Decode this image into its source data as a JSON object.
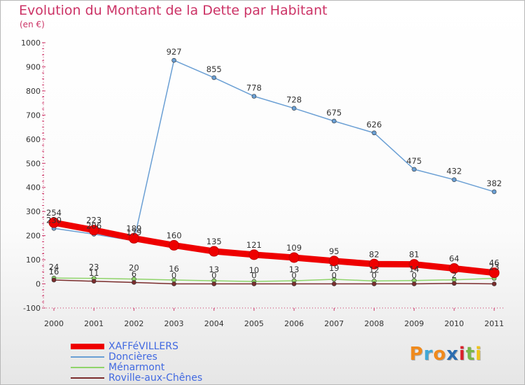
{
  "title": "Evolution du Montant de la Dette par Habitant",
  "subtitle": "(en €)",
  "brand": {
    "text": "Proxiti",
    "letter_colors": [
      "#f08a1c",
      "#3fa7d6",
      "#f08a1c",
      "#2b6cb0",
      "#d9232e",
      "#7ab648",
      "#f0c419"
    ]
  },
  "chart_data": {
    "type": "line",
    "x": [
      "2000",
      "2001",
      "2002",
      "2003",
      "2004",
      "2005",
      "2006",
      "2007",
      "2008",
      "2009",
      "2010",
      "2011"
    ],
    "ylim": [
      -100,
      1000
    ],
    "yticks": [
      "-100",
      "0",
      "100",
      "200",
      "300",
      "400",
      "500",
      "600",
      "700",
      "800",
      "900",
      "1000"
    ],
    "grid": false,
    "legend_position": "bottom-left",
    "series": [
      {
        "name": "Doncières",
        "color": "#6a9fd4",
        "values": [
          230,
          206,
          179,
          927,
          855,
          778,
          728,
          675,
          626,
          475,
          432,
          382
        ],
        "labels": [
          "230",
          "206",
          "179",
          "927",
          "855",
          "778",
          "728",
          "675",
          "626",
          "475",
          "432",
          "382"
        ]
      },
      {
        "name": "Ménarmont",
        "color": "#8fd46a",
        "values": [
          24,
          23,
          20,
          16,
          13,
          10,
          13,
          19,
          12,
          14,
          17,
          23
        ],
        "labels": [
          "24",
          "23",
          "20",
          "16",
          "13",
          "10",
          "13",
          "19",
          "12",
          "14",
          "",
          "23"
        ]
      },
      {
        "name": "Roville-aux-Chênes",
        "color": "#7b2d2d",
        "values": [
          16,
          11,
          6,
          0,
          0,
          0,
          0,
          0,
          0,
          0,
          2,
          0
        ],
        "labels": [
          "16",
          "11",
          "6",
          "0",
          "0",
          "0",
          "0",
          "0",
          "0",
          "0",
          "2",
          ""
        ]
      },
      {
        "name": "XAFFéVILLERS",
        "color": "#ee0000",
        "values": [
          254,
          223,
          189,
          160,
          135,
          121,
          109,
          95,
          82,
          81,
          64,
          46
        ],
        "labels": [
          "254",
          "223",
          "189",
          "160",
          "135",
          "121",
          "109",
          "95",
          "82",
          "81",
          "64",
          "46"
        ]
      }
    ],
    "legend_order": [
      "XAFFéVILLERS",
      "Doncières",
      "Ménarmont",
      "Roville-aux-Chênes"
    ]
  }
}
